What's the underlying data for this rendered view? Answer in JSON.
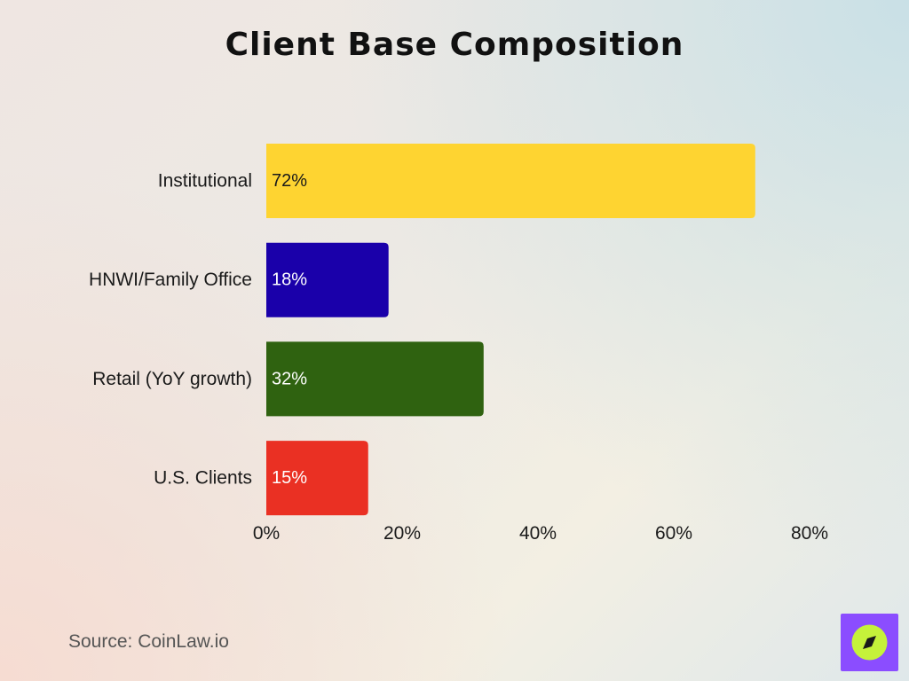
{
  "chart_data": {
    "type": "bar",
    "orientation": "horizontal",
    "title": "Client Base Composition",
    "categories": [
      "Institutional",
      "HNWI/Family Office",
      "Retail (YoY growth)",
      "U.S. Clients"
    ],
    "values": [
      72,
      18,
      32,
      15
    ],
    "value_labels": [
      "72%",
      "18%",
      "32%",
      "15%"
    ],
    "colors": [
      "#fed431",
      "#1a00aa",
      "#2f6210",
      "#ea3023"
    ],
    "label_colors": [
      "#1a1a1a",
      "#ffffff",
      "#ffffff",
      "#ffffff"
    ],
    "xlim": [
      0,
      80
    ],
    "x_ticks": [
      0,
      20,
      40,
      60,
      80
    ],
    "x_tick_labels": [
      "0%",
      "20%",
      "40%",
      "60%",
      "80%"
    ],
    "grid": false,
    "legend": "none"
  },
  "footer": {
    "source": "Source: CoinLaw.io"
  },
  "logo": {
    "icon": "compass-icon",
    "bg_color": "#8b4dff",
    "circle_color": "#c5f23a"
  }
}
